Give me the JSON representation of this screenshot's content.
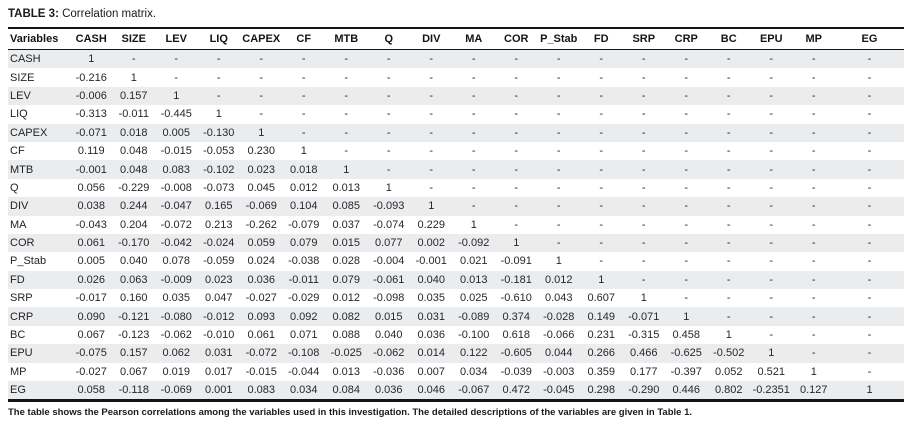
{
  "title": {
    "label": "TABLE 3:",
    "text": "Correlation matrix."
  },
  "footnote": "The table shows the Pearson correlations among the variables used in this investigation. The detailed descriptions of the variables are given in Table 1.",
  "colors": {
    "stripe": "#eaecee",
    "rule": "#141414",
    "text": "#26282c"
  },
  "chart_data": {
    "type": "table",
    "title": "TABLE 3: Correlation matrix.",
    "columns": [
      "Variables",
      "CASH",
      "SIZE",
      "LEV",
      "LIQ",
      "CAPEX",
      "CF",
      "MTB",
      "Q",
      "DIV",
      "MA",
      "COR",
      "P_Stab",
      "FD",
      "SRP",
      "CRP",
      "BC",
      "EPU",
      "MP",
      "EG"
    ],
    "rows": [
      {
        "label": "CASH",
        "values": [
          "1",
          "-",
          "-",
          "-",
          "-",
          "-",
          "-",
          "-",
          "-",
          "-",
          "-",
          "-",
          "-",
          "-",
          "-",
          "-",
          "-",
          "-",
          "-"
        ]
      },
      {
        "label": "SIZE",
        "values": [
          "-0.216",
          "1",
          "-",
          "-",
          "-",
          "-",
          "-",
          "-",
          "-",
          "-",
          "-",
          "-",
          "-",
          "-",
          "-",
          "-",
          "-",
          "-",
          "-"
        ]
      },
      {
        "label": "LEV",
        "values": [
          "-0.006",
          "0.157",
          "1",
          "-",
          "-",
          "-",
          "-",
          "-",
          "-",
          "-",
          "-",
          "-",
          "-",
          "-",
          "-",
          "-",
          "-",
          "-",
          "-"
        ]
      },
      {
        "label": "LIQ",
        "values": [
          "-0.313",
          "-0.011",
          "-0.445",
          "1",
          "-",
          "-",
          "-",
          "-",
          "-",
          "-",
          "-",
          "-",
          "-",
          "-",
          "-",
          "-",
          "-",
          "-",
          "-"
        ]
      },
      {
        "label": "CAPEX",
        "values": [
          "-0.071",
          "0.018",
          "0.005",
          "-0.130",
          "1",
          "-",
          "-",
          "-",
          "-",
          "-",
          "-",
          "-",
          "-",
          "-",
          "-",
          "-",
          "-",
          "-",
          "-"
        ]
      },
      {
        "label": "CF",
        "values": [
          "0.119",
          "0.048",
          "-0.015",
          "-0.053",
          "0.230",
          "1",
          "-",
          "-",
          "-",
          "-",
          "-",
          "-",
          "-",
          "-",
          "-",
          "-",
          "-",
          "-",
          "-"
        ]
      },
      {
        "label": "MTB",
        "values": [
          "-0.001",
          "0.048",
          "0.083",
          "-0.102",
          "0.023",
          "0.018",
          "1",
          "-",
          "-",
          "-",
          "-",
          "-",
          "-",
          "-",
          "-",
          "-",
          "-",
          "-",
          "-"
        ]
      },
      {
        "label": "Q",
        "values": [
          "0.056",
          "-0.229",
          "-0.008",
          "-0.073",
          "0.045",
          "0.012",
          "0.013",
          "1",
          "-",
          "-",
          "-",
          "-",
          "-",
          "-",
          "-",
          "-",
          "-",
          "-",
          "-"
        ]
      },
      {
        "label": "DIV",
        "values": [
          "0.038",
          "0.244",
          "-0.047",
          "0.165",
          "-0.069",
          "0.104",
          "0.085",
          "-0.093",
          "1",
          "-",
          "-",
          "-",
          "-",
          "-",
          "-",
          "-",
          "-",
          "-",
          "-"
        ]
      },
      {
        "label": "MA",
        "values": [
          "-0.043",
          "0.204",
          "-0.072",
          "0.213",
          "-0.262",
          "-0.079",
          "0.037",
          "-0.074",
          "0.229",
          "1",
          "-",
          "-",
          "-",
          "-",
          "-",
          "-",
          "-",
          "-",
          "-"
        ]
      },
      {
        "label": "COR",
        "values": [
          "0.061",
          "-0.170",
          "-0.042",
          "-0.024",
          "0.059",
          "0.079",
          "0.015",
          "0.077",
          "0.002",
          "-0.092",
          "1",
          "-",
          "-",
          "-",
          "-",
          "-",
          "-",
          "-",
          "-"
        ]
      },
      {
        "label": "P_Stab",
        "values": [
          "0.005",
          "0.040",
          "0.078",
          "-0.059",
          "0.024",
          "-0.038",
          "0.028",
          "-0.004",
          "-0.001",
          "0.021",
          "-0.091",
          "1",
          "-",
          "-",
          "-",
          "-",
          "-",
          "-",
          "-"
        ]
      },
      {
        "label": "FD",
        "values": [
          "0.026",
          "0.063",
          "-0.009",
          "0.023",
          "0.036",
          "-0.011",
          "0.079",
          "-0.061",
          "0.040",
          "0.013",
          "-0.181",
          "0.012",
          "1",
          "-",
          "-",
          "-",
          "-",
          "-",
          "-"
        ]
      },
      {
        "label": "SRP",
        "values": [
          "-0.017",
          "0.160",
          "0.035",
          "0.047",
          "-0.027",
          "-0.029",
          "0.012",
          "-0.098",
          "0.035",
          "0.025",
          "-0.610",
          "0.043",
          "0.607",
          "1",
          "-",
          "-",
          "-",
          "-",
          "-"
        ]
      },
      {
        "label": "CRP",
        "values": [
          "0.090",
          "-0.121",
          "-0.080",
          "-0.012",
          "0.093",
          "0.092",
          "0.082",
          "0.015",
          "0.031",
          "-0.089",
          "0.374",
          "-0.028",
          "0.149",
          "-0.071",
          "1",
          "-",
          "-",
          "-",
          "-"
        ]
      },
      {
        "label": "BC",
        "values": [
          "0.067",
          "-0.123",
          "-0.062",
          "-0.010",
          "0.061",
          "0.071",
          "0.088",
          "0.040",
          "0.036",
          "-0.100",
          "0.618",
          "-0.066",
          "0.231",
          "-0.315",
          "0.458",
          "1",
          "-",
          "-",
          "-"
        ]
      },
      {
        "label": "EPU",
        "values": [
          "-0.075",
          "0.157",
          "0.062",
          "0.031",
          "-0.072",
          "-0.108",
          "-0.025",
          "-0.062",
          "0.014",
          "0.122",
          "-0.605",
          "0.044",
          "0.266",
          "0.466",
          "-0.625",
          "-0.502",
          "1",
          "-",
          "-"
        ]
      },
      {
        "label": "MP",
        "values": [
          "-0.027",
          "0.067",
          "0.019",
          "0.017",
          "-0.015",
          "-0.044",
          "0.013",
          "-0.036",
          "0.007",
          "0.034",
          "-0.039",
          "-0.003",
          "0.359",
          "0.177",
          "-0.397",
          "0.052",
          "0.521",
          "1",
          "-"
        ]
      },
      {
        "label": "EG",
        "values": [
          "0.058",
          "-0.118",
          "-0.069",
          "0.001",
          "0.083",
          "0.034",
          "0.084",
          "0.036",
          "0.046",
          "-0.067",
          "0.472",
          "-0.045",
          "0.298",
          "-0.290",
          "0.446",
          "0.802",
          "-0.2351",
          "0.127",
          "1"
        ]
      }
    ]
  }
}
